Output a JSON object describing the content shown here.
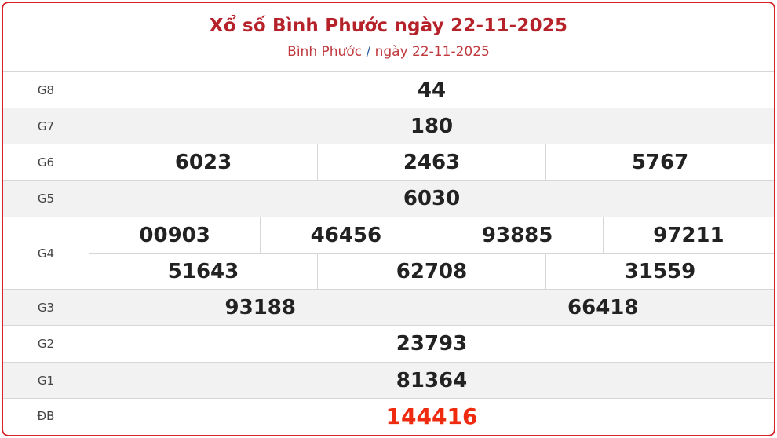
{
  "header": {
    "title": "Xổ số Bình Phước ngày 22-11-2025",
    "breadcrumb_province": "Bình Phước",
    "breadcrumb_sep": "/",
    "breadcrumb_date": "ngày 22-11-2025"
  },
  "prizes": [
    {
      "label": "G8",
      "lines": [
        [
          "44"
        ]
      ]
    },
    {
      "label": "G7",
      "lines": [
        [
          "180"
        ]
      ]
    },
    {
      "label": "G6",
      "lines": [
        [
          "6023",
          "2463",
          "5767"
        ]
      ]
    },
    {
      "label": "G5",
      "lines": [
        [
          "6030"
        ]
      ]
    },
    {
      "label": "G4",
      "lines": [
        [
          "00903",
          "46456",
          "93885",
          "97211"
        ],
        [
          "51643",
          "62708",
          "31559"
        ]
      ]
    },
    {
      "label": "G3",
      "lines": [
        [
          "93188",
          "66418"
        ]
      ]
    },
    {
      "label": "G2",
      "lines": [
        [
          "23793"
        ]
      ]
    },
    {
      "label": "G1",
      "lines": [
        [
          "81364"
        ]
      ]
    },
    {
      "label": "ĐB",
      "lines": [
        [
          "144416"
        ]
      ]
    }
  ],
  "colors": {
    "border": "#d8232a",
    "title": "#b5222a",
    "special": "#ee2b0e"
  }
}
